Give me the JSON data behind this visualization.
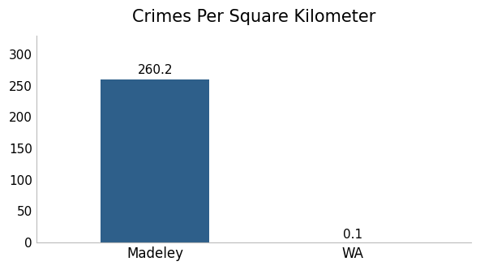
{
  "title": "Crimes Per Square Kilometer",
  "categories": [
    "Madeley",
    "WA"
  ],
  "values": [
    260.2,
    0.1
  ],
  "bar_color": "#2e5f8a",
  "bar_width": 0.55,
  "ylim": [
    0,
    330
  ],
  "yticks": [
    0,
    50,
    100,
    150,
    200,
    250,
    300
  ],
  "title_fontsize": 15,
  "tick_fontsize": 11,
  "label_fontsize": 12,
  "annotation_fontsize": 11,
  "background_color": "#ffffff",
  "spine_color": "#bbbbbb",
  "figwidth": 5.92,
  "figheight": 3.33,
  "dpi": 100
}
